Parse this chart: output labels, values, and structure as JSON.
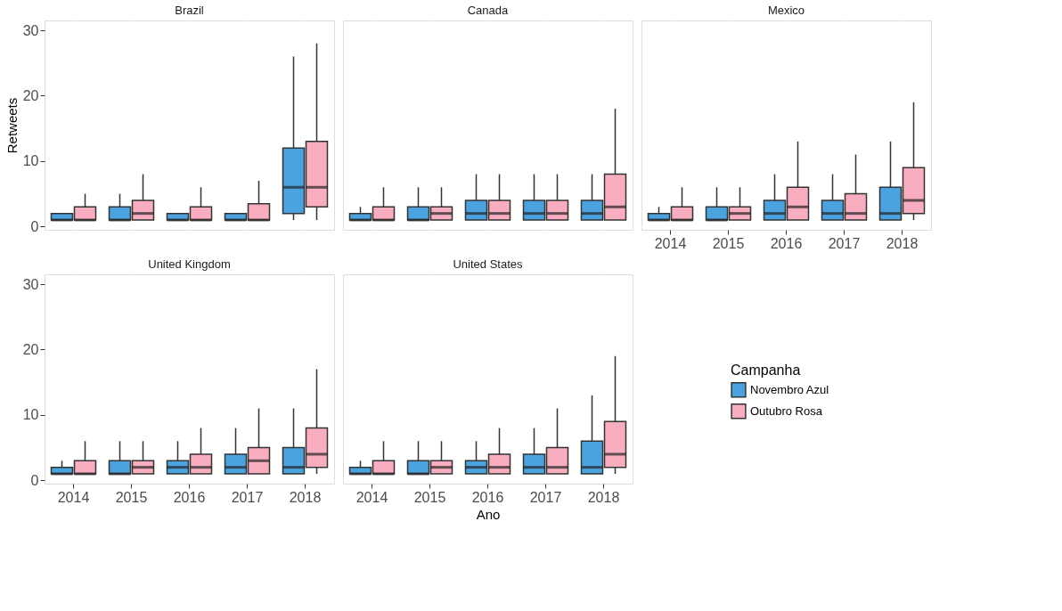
{
  "chart_data": [
    {
      "type": "box",
      "title": "Brazil",
      "ylabel": "Retweets",
      "legend_title": "Campanha",
      "legend": "bottom right",
      "categories": [
        "2014",
        "2015",
        "2016",
        "2017",
        "2018"
      ],
      "ylim": [
        -0.5,
        31.5
      ],
      "yticks": [
        0,
        10,
        20,
        30
      ],
      "grid": true,
      "tick_labels": "y",
      "series": [
        {
          "name": "Novembro Azul",
          "color": "#4aa3df",
          "boxes": [
            {
              "low": 1,
              "q1": 1,
              "median": 1,
              "q3": 2,
              "high": 2
            },
            {
              "low": 1,
              "q1": 1,
              "median": 1,
              "q3": 3,
              "high": 5
            },
            {
              "low": 1,
              "q1": 1,
              "median": 1,
              "q3": 2,
              "high": 2
            },
            {
              "low": 1,
              "q1": 1,
              "median": 1,
              "q3": 2,
              "high": 2
            },
            {
              "low": 1,
              "q1": 2,
              "median": 6,
              "q3": 12,
              "high": 26
            }
          ]
        },
        {
          "name": "Outubro Rosa",
          "color": "#f8aebf",
          "boxes": [
            {
              "low": 1,
              "q1": 1,
              "median": 1,
              "q3": 3,
              "high": 5
            },
            {
              "low": 1,
              "q1": 1,
              "median": 2,
              "q3": 4,
              "high": 8
            },
            {
              "low": 1,
              "q1": 1,
              "median": 1,
              "q3": 3,
              "high": 6
            },
            {
              "low": 1,
              "q1": 1,
              "median": 1,
              "q3": 3.5,
              "high": 7
            },
            {
              "low": 1,
              "q1": 3,
              "median": 6,
              "q3": 13,
              "high": 28
            }
          ]
        }
      ]
    },
    {
      "type": "box",
      "title": "Canada",
      "categories": [
        "2014",
        "2015",
        "2016",
        "2017",
        "2018"
      ],
      "ylim": [
        -0.5,
        31.5
      ],
      "yticks": [
        0,
        10,
        20,
        30
      ],
      "grid": true,
      "tick_labels": false,
      "series": [
        {
          "name": "Novembro Azul",
          "color": "#4aa3df",
          "boxes": [
            {
              "low": 1,
              "q1": 1,
              "median": 1,
              "q3": 2,
              "high": 3
            },
            {
              "low": 1,
              "q1": 1,
              "median": 1,
              "q3": 3,
              "high": 6
            },
            {
              "low": 1,
              "q1": 1,
              "median": 2,
              "q3": 4,
              "high": 8
            },
            {
              "low": 1,
              "q1": 1,
              "median": 2,
              "q3": 4,
              "high": 8
            },
            {
              "low": 1,
              "q1": 1,
              "median": 2,
              "q3": 4,
              "high": 8
            }
          ]
        },
        {
          "name": "Outubro Rosa",
          "color": "#f8aebf",
          "boxes": [
            {
              "low": 1,
              "q1": 1,
              "median": 1,
              "q3": 3,
              "high": 6
            },
            {
              "low": 1,
              "q1": 1,
              "median": 2,
              "q3": 3,
              "high": 6
            },
            {
              "low": 1,
              "q1": 1,
              "median": 2,
              "q3": 4,
              "high": 8
            },
            {
              "low": 1,
              "q1": 1,
              "median": 2,
              "q3": 4,
              "high": 8
            },
            {
              "low": 1,
              "q1": 1,
              "median": 3,
              "q3": 8,
              "high": 18
            }
          ]
        }
      ]
    },
    {
      "type": "box",
      "title": "Mexico",
      "categories": [
        "2014",
        "2015",
        "2016",
        "2017",
        "2018"
      ],
      "ylim": [
        -0.5,
        31.5
      ],
      "yticks": [
        0,
        10,
        20,
        30
      ],
      "grid": true,
      "tick_labels": "x",
      "series": [
        {
          "name": "Novembro Azul",
          "color": "#4aa3df",
          "boxes": [
            {
              "low": 1,
              "q1": 1,
              "median": 1,
              "q3": 2,
              "high": 3
            },
            {
              "low": 1,
              "q1": 1,
              "median": 1,
              "q3": 3,
              "high": 6
            },
            {
              "low": 1,
              "q1": 1,
              "median": 2,
              "q3": 4,
              "high": 8
            },
            {
              "low": 1,
              "q1": 1,
              "median": 2,
              "q3": 4,
              "high": 8
            },
            {
              "low": 1,
              "q1": 1,
              "median": 2,
              "q3": 6,
              "high": 13
            }
          ]
        },
        {
          "name": "Outubro Rosa",
          "color": "#f8aebf",
          "boxes": [
            {
              "low": 1,
              "q1": 1,
              "median": 1,
              "q3": 3,
              "high": 6
            },
            {
              "low": 1,
              "q1": 1,
              "median": 2,
              "q3": 3,
              "high": 6
            },
            {
              "low": 1,
              "q1": 1,
              "median": 3,
              "q3": 6,
              "high": 13
            },
            {
              "low": 1,
              "q1": 1,
              "median": 2,
              "q3": 5,
              "high": 11
            },
            {
              "low": 1,
              "q1": 2,
              "median": 4,
              "q3": 9,
              "high": 19
            }
          ]
        }
      ]
    },
    {
      "type": "box",
      "title": "United Kingdom",
      "categories": [
        "2014",
        "2015",
        "2016",
        "2017",
        "2018"
      ],
      "ylim": [
        -0.5,
        31.5
      ],
      "yticks": [
        0,
        10,
        20,
        30
      ],
      "grid": true,
      "series": [
        {
          "name": "Novembro Azul",
          "color": "#4aa3df",
          "boxes": [
            {
              "low": 1,
              "q1": 1,
              "median": 1,
              "q3": 2,
              "high": 3
            },
            {
              "low": 1,
              "q1": 1,
              "median": 1,
              "q3": 3,
              "high": 6
            },
            {
              "low": 1,
              "q1": 1,
              "median": 2,
              "q3": 3,
              "high": 6
            },
            {
              "low": 1,
              "q1": 1,
              "median": 2,
              "q3": 4,
              "high": 8
            },
            {
              "low": 1,
              "q1": 1,
              "median": 2,
              "q3": 5,
              "high": 11
            }
          ]
        },
        {
          "name": "Outubro Rosa",
          "color": "#f8aebf",
          "boxes": [
            {
              "low": 1,
              "q1": 1,
              "median": 1,
              "q3": 3,
              "high": 6
            },
            {
              "low": 1,
              "q1": 1,
              "median": 2,
              "q3": 3,
              "high": 6
            },
            {
              "low": 1,
              "q1": 1,
              "median": 2,
              "q3": 4,
              "high": 8
            },
            {
              "low": 1,
              "q1": 1,
              "median": 3,
              "q3": 5,
              "high": 11
            },
            {
              "low": 1,
              "q1": 2,
              "median": 4,
              "q3": 8,
              "high": 17
            }
          ]
        }
      ]
    },
    {
      "type": "box",
      "title": "United States",
      "xlabel": "Ano",
      "categories": [
        "2014",
        "2015",
        "2016",
        "2017",
        "2018"
      ],
      "ylim": [
        -0.5,
        31.5
      ],
      "yticks": [
        0,
        10,
        20,
        30
      ],
      "grid": true,
      "tick_labels": "x",
      "series": [
        {
          "name": "Novembro Azul",
          "color": "#4aa3df",
          "boxes": [
            {
              "low": 1,
              "q1": 1,
              "median": 1,
              "q3": 2,
              "high": 3
            },
            {
              "low": 1,
              "q1": 1,
              "median": 1,
              "q3": 3,
              "high": 6
            },
            {
              "low": 1,
              "q1": 1,
              "median": 2,
              "q3": 3,
              "high": 6
            },
            {
              "low": 1,
              "q1": 1,
              "median": 2,
              "q3": 4,
              "high": 8
            },
            {
              "low": 1,
              "q1": 1,
              "median": 2,
              "q3": 6,
              "high": 13
            }
          ]
        },
        {
          "name": "Outubro Rosa",
          "color": "#f8aebf",
          "boxes": [
            {
              "low": 1,
              "q1": 1,
              "median": 1,
              "q3": 3,
              "high": 6
            },
            {
              "low": 1,
              "q1": 1,
              "median": 2,
              "q3": 3,
              "high": 6
            },
            {
              "low": 1,
              "q1": 1,
              "median": 2,
              "q3": 4,
              "high": 8
            },
            {
              "low": 1,
              "q1": 1,
              "median": 2,
              "q3": 5,
              "high": 11
            },
            {
              "low": 1,
              "q1": 2,
              "median": 4,
              "q3": 9,
              "high": 19
            }
          ]
        }
      ]
    }
  ]
}
